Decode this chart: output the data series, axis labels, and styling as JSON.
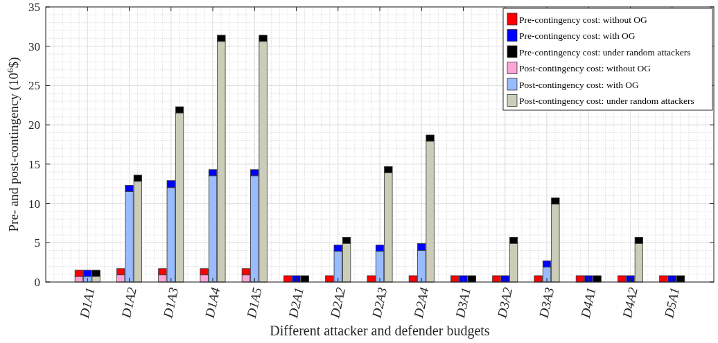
{
  "chart_data": {
    "type": "bar",
    "xlabel": "Different attacker and defender budgets",
    "ylabel": "Pre- and post-contingency (10$^{6}$$)",
    "categories": [
      "D1A1",
      "D1A2",
      "D1A3",
      "D1A4",
      "D1A5",
      "D2A1",
      "D2A2",
      "D2A3",
      "D2A4",
      "D3A1",
      "D3A2",
      "D3A3",
      "D4A1",
      "D4A2",
      "D5A1"
    ],
    "ylim": [
      0,
      35
    ],
    "yticks": [
      0,
      5,
      10,
      15,
      20,
      25,
      30,
      35
    ],
    "grid": true,
    "legend": "top right",
    "series": [
      {
        "name": "Pre-contingency cost: without OG",
        "color": "#ff0000",
        "base": [
          0.7,
          0.9,
          0.9,
          0.9,
          0.9,
          0,
          0,
          0,
          0,
          0,
          0,
          0,
          0,
          0,
          0
        ],
        "values": [
          0.8,
          0.8,
          0.8,
          0.8,
          0.8,
          0.8,
          0.8,
          0.8,
          0.8,
          0.8,
          0.8,
          0.8,
          0.8,
          0.8,
          0.8
        ]
      },
      {
        "name": "Pre-contingency cost: with OG",
        "color": "#0000ff",
        "base": [
          0.7,
          11.5,
          12.0,
          13.5,
          13.5,
          0,
          3.9,
          3.9,
          4.0,
          0,
          0,
          1.9,
          0,
          0,
          0
        ],
        "values": [
          0.8,
          0.8,
          0.9,
          0.8,
          0.8,
          0.8,
          0.8,
          0.8,
          0.9,
          0.8,
          0.8,
          0.8,
          0.8,
          0.8,
          0.8
        ]
      },
      {
        "name": "Pre-contingency cost: under random attackers",
        "color": "#000000",
        "base": [
          0.7,
          12.8,
          21.5,
          30.6,
          30.6,
          0,
          4.9,
          13.9,
          17.9,
          0,
          4.9,
          9.9,
          0,
          4.9,
          0
        ],
        "values": [
          0.8,
          0.8,
          0.8,
          0.8,
          0.8,
          0.8,
          0.8,
          0.8,
          0.8,
          0.8,
          0.8,
          0.8,
          0.8,
          0.8,
          0.8
        ]
      },
      {
        "name": "Post-contingency cost: without OG",
        "color": "#ffa6d9",
        "values": [
          0.7,
          0.9,
          0.9,
          0.9,
          0.9,
          0,
          0,
          0,
          0,
          0,
          0,
          0,
          0,
          0,
          0
        ]
      },
      {
        "name": "Post-contingency cost: with OG",
        "color": "#99bbff",
        "values": [
          0.7,
          11.5,
          12.0,
          13.5,
          13.5,
          0,
          3.9,
          3.9,
          4.0,
          0,
          0,
          1.9,
          0,
          0,
          0
        ]
      },
      {
        "name": "Post-contingency cost: under random attackers",
        "color": "#cccdb9",
        "values": [
          0.7,
          12.8,
          21.5,
          30.6,
          30.6,
          0,
          4.9,
          13.9,
          17.9,
          0,
          4.9,
          9.9,
          0,
          4.9,
          0
        ]
      }
    ]
  }
}
